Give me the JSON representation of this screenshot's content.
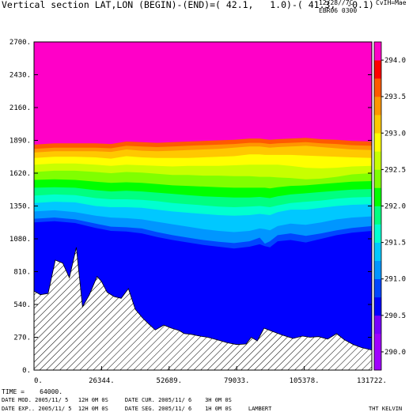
{
  "header": {
    "title": "Vertical section LAT,LON (BEGIN)-(END)=( 42.1,   1.0)-( 41.3,  -0.1)",
    "date": "12/28//7C",
    "tag": "EBR06 0300",
    "right": "CvIH=Mae"
  },
  "footer": {
    "time": "TIME =    64000.",
    "line1": "DATE MOD. 2005/11/ 5   12H 0M 0S     DATE CUR. 2005/11/ 6    3H 0M 0S",
    "line2": "DATE EXP.. 2005/11/ 5  12H 0M 0S     DATE SEG. 2005/11/ 6    1H 0M 0S     LAMBERT",
    "unit": "THT KELVIN"
  },
  "chart_data": {
    "type": "heatmap",
    "title": "Vertical section LAT,LON (BEGIN)-(END)=( 42.1,   1.0)-( 41.3,  -0.1)",
    "xlim": [
      0,
      131722
    ],
    "ylim": [
      0,
      2700
    ],
    "x_ticks": [
      "0.",
      "26344.",
      "52689.",
      "79033.",
      "105378.",
      "131722."
    ],
    "y_ticks": [
      "0.",
      "270.",
      "540.",
      "810.",
      "1080.",
      "1350.",
      "1620.",
      "1890.",
      "2160.",
      "2430.",
      "2700."
    ],
    "colorbar": {
      "label": "THT KELVIN",
      "levels": [
        289.75,
        290.0,
        290.25,
        290.5,
        290.75,
        291.0,
        291.25,
        291.5,
        291.75,
        292.0,
        292.25,
        292.5,
        292.75,
        293.0,
        293.25,
        293.5,
        293.75,
        294.0,
        294.25
      ],
      "tick_labels": [
        "290.0",
        "290.5",
        "291.0",
        "291.5",
        "292.0",
        "292.5",
        "293.0",
        "293.5",
        "294.0"
      ],
      "colors": [
        "#a000ff",
        "#a000ff",
        "#7800ff",
        "#0000ff",
        "#0046ff",
        "#0096ff",
        "#00c8ff",
        "#00ffd0",
        "#00ff80",
        "#00ff00",
        "#80ff00",
        "#c8ff00",
        "#ffff00",
        "#ffc800",
        "#ff9600",
        "#ff5a00",
        "#ff0000",
        "#ff00c8"
      ]
    },
    "terrain": {
      "x": [
        0,
        2500,
        5500,
        8300,
        11200,
        13800,
        16500,
        18900,
        21600,
        24600,
        26300,
        28500,
        31200,
        34000,
        36800,
        39500,
        42300,
        45000,
        47300,
        50600,
        53600,
        56600,
        58600,
        61200,
        64600,
        67700,
        70300,
        73000,
        75300,
        79000,
        82700,
        84700,
        87100,
        89700,
        92700,
        96500,
        101000,
        104700,
        107600,
        111000,
        114500,
        118000,
        121000,
        124500,
        127800,
        131722
      ],
      "y": [
        650,
        620,
        630,
        905,
        880,
        760,
        1010,
        520,
        620,
        770,
        730,
        640,
        605,
        590,
        670,
        500,
        430,
        375,
        330,
        370,
        345,
        325,
        300,
        295,
        280,
        270,
        255,
        240,
        225,
        210,
        215,
        270,
        240,
        345,
        320,
        290,
        260,
        280,
        270,
        275,
        255,
        300,
        250,
        210,
        185,
        165
      ]
    },
    "contours": {
      "x": [
        0,
        8000,
        16000,
        24000,
        30000,
        36000,
        42000,
        48000,
        54000,
        60000,
        66000,
        72000,
        78000,
        84000,
        88000,
        90000,
        92000,
        95000,
        100000,
        106000,
        112000,
        118000,
        124000,
        131722
      ],
      "levels": [
        {
          "value": 290.75,
          "y": [
            1215,
            1225,
            1210,
            1170,
            1145,
            1140,
            1125,
            1095,
            1070,
            1050,
            1030,
            1015,
            1000,
            1015,
            1035,
            1020,
            1010,
            1060,
            1070,
            1050,
            1080,
            1110,
            1130,
            1145
          ]
        },
        {
          "value": 291.0,
          "y": [
            1245,
            1255,
            1240,
            1205,
            1180,
            1175,
            1165,
            1135,
            1110,
            1090,
            1070,
            1055,
            1045,
            1060,
            1090,
            1040,
            1060,
            1110,
            1125,
            1105,
            1125,
            1150,
            1170,
            1185
          ]
        },
        {
          "value": 291.25,
          "y": [
            1305,
            1315,
            1300,
            1270,
            1255,
            1250,
            1240,
            1220,
            1200,
            1180,
            1160,
            1145,
            1135,
            1145,
            1165,
            1160,
            1150,
            1185,
            1205,
            1195,
            1215,
            1240,
            1255,
            1265
          ]
        },
        {
          "value": 291.5,
          "y": [
            1375,
            1385,
            1380,
            1350,
            1340,
            1340,
            1335,
            1320,
            1305,
            1295,
            1285,
            1275,
            1270,
            1275,
            1285,
            1280,
            1275,
            1300,
            1320,
            1320,
            1335,
            1350,
            1360,
            1365
          ]
        },
        {
          "value": 291.75,
          "y": [
            1435,
            1445,
            1440,
            1415,
            1405,
            1405,
            1400,
            1390,
            1375,
            1365,
            1355,
            1345,
            1340,
            1345,
            1350,
            1345,
            1340,
            1355,
            1375,
            1385,
            1395,
            1410,
            1420,
            1425
          ]
        },
        {
          "value": 292.0,
          "y": [
            1500,
            1505,
            1500,
            1480,
            1470,
            1475,
            1470,
            1460,
            1450,
            1440,
            1430,
            1425,
            1420,
            1420,
            1425,
            1420,
            1415,
            1430,
            1445,
            1455,
            1465,
            1475,
            1485,
            1490
          ]
        },
        {
          "value": 292.25,
          "y": [
            1565,
            1570,
            1565,
            1550,
            1540,
            1545,
            1540,
            1530,
            1520,
            1515,
            1510,
            1505,
            1500,
            1500,
            1500,
            1500,
            1495,
            1505,
            1515,
            1520,
            1530,
            1540,
            1550,
            1555
          ]
        },
        {
          "value": 292.5,
          "y": [
            1630,
            1640,
            1640,
            1630,
            1620,
            1630,
            1625,
            1615,
            1605,
            1605,
            1600,
            1600,
            1595,
            1595,
            1590,
            1590,
            1590,
            1585,
            1580,
            1570,
            1575,
            1590,
            1610,
            1620
          ]
        },
        {
          "value": 292.75,
          "y": [
            1690,
            1700,
            1700,
            1690,
            1680,
            1690,
            1685,
            1680,
            1675,
            1680,
            1680,
            1680,
            1685,
            1690,
            1690,
            1690,
            1690,
            1690,
            1680,
            1665,
            1660,
            1665,
            1675,
            1680
          ]
        },
        {
          "value": 293.0,
          "y": [
            1745,
            1755,
            1755,
            1750,
            1740,
            1760,
            1750,
            1745,
            1745,
            1745,
            1750,
            1755,
            1760,
            1775,
            1775,
            1770,
            1770,
            1770,
            1770,
            1765,
            1760,
            1755,
            1750,
            1745
          ]
        },
        {
          "value": 293.25,
          "y": [
            1790,
            1800,
            1800,
            1800,
            1795,
            1815,
            1805,
            1800,
            1805,
            1810,
            1815,
            1820,
            1830,
            1840,
            1840,
            1835,
            1830,
            1835,
            1840,
            1845,
            1835,
            1825,
            1815,
            1810
          ]
        },
        {
          "value": 293.5,
          "y": [
            1820,
            1830,
            1830,
            1830,
            1825,
            1845,
            1840,
            1835,
            1840,
            1845,
            1850,
            1855,
            1860,
            1870,
            1870,
            1865,
            1860,
            1865,
            1870,
            1875,
            1865,
            1860,
            1850,
            1845
          ]
        },
        {
          "value": 293.75,
          "y": [
            1855,
            1865,
            1865,
            1865,
            1860,
            1880,
            1875,
            1870,
            1875,
            1880,
            1885,
            1890,
            1895,
            1905,
            1905,
            1900,
            1895,
            1900,
            1905,
            1910,
            1900,
            1895,
            1885,
            1880
          ]
        }
      ]
    }
  }
}
